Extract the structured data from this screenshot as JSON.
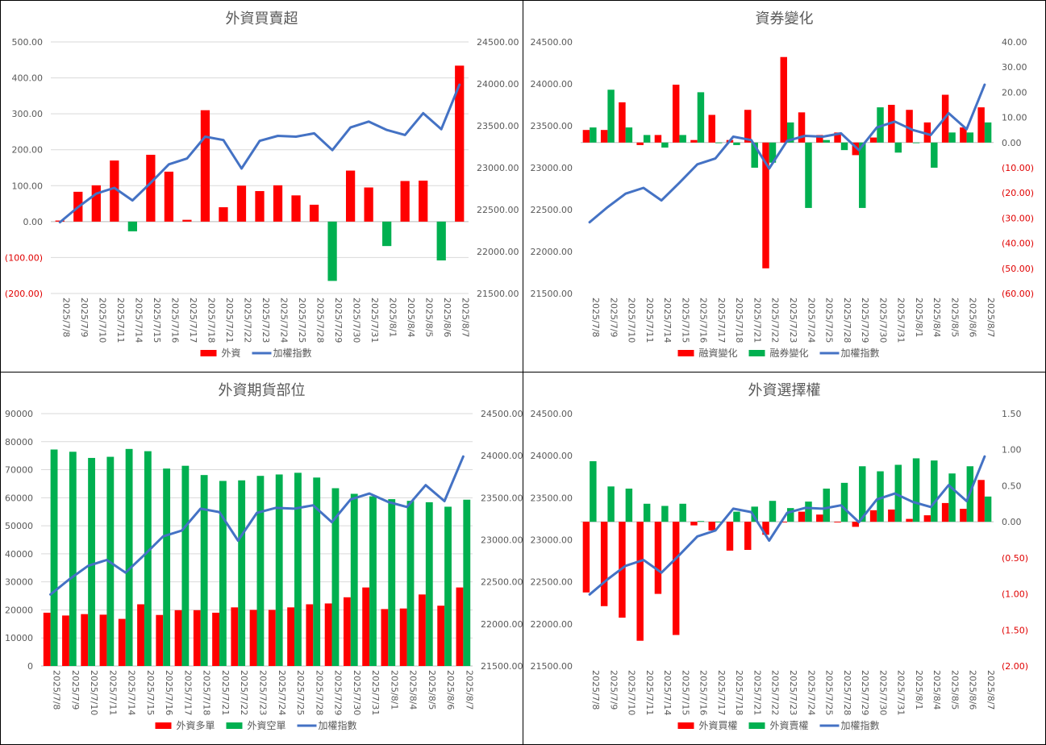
{
  "chart_data": [
    {
      "type": "bar",
      "title": "外資買賣超",
      "categories": [
        "2025/7/8",
        "2025/7/9",
        "2025/7/10",
        "2025/7/11",
        "2025/7/14",
        "2025/7/15",
        "2025/7/16",
        "2025/7/17",
        "2025/7/18",
        "2025/7/21",
        "2025/7/22",
        "2025/7/23",
        "2025/7/24",
        "2025/7/25",
        "2025/7/28",
        "2025/7/29",
        "2025/7/30",
        "2025/7/31",
        "2025/8/1",
        "2025/8/4",
        "2025/8/5",
        "2025/8/6",
        "2025/8/7"
      ],
      "yticks_left": [
        "500.00",
        "400.00",
        "300.00",
        "200.00",
        "100.00",
        "0.00",
        "(100.00)",
        "(200.00)"
      ],
      "yticks_right": [
        "24500.00",
        "24000.00",
        "23500.00",
        "23000.00",
        "22500.00",
        "22000.00",
        "21500.00"
      ],
      "ylim_left": [
        -200,
        500
      ],
      "ylim_right": [
        21500,
        24500
      ],
      "grid": true,
      "legend_position": "bottom",
      "series": [
        {
          "name": "外資",
          "kind": "bar",
          "axis": "left",
          "colors": [
            "#ff0000",
            "#00b050"
          ],
          "values": [
            3,
            83,
            101,
            170,
            -27,
            186,
            139,
            5,
            310,
            40,
            100,
            85,
            101,
            73,
            47,
            -165,
            142,
            95,
            -68,
            113,
            114,
            -108,
            434
          ]
        },
        {
          "name": "加權指數",
          "kind": "line",
          "axis": "right",
          "colors": [
            "#4472c4"
          ],
          "values": [
            22350,
            22530,
            22690,
            22760,
            22610,
            22820,
            23040,
            23110,
            23370,
            23330,
            22990,
            23320,
            23380,
            23370,
            23410,
            23210,
            23480,
            23550,
            23450,
            23390,
            23650,
            23460,
            23990
          ]
        }
      ]
    },
    {
      "type": "bar",
      "title": "資券變化",
      "categories": [
        "2025/7/8",
        "2025/7/9",
        "2025/7/10",
        "2025/7/11",
        "2025/7/14",
        "2025/7/15",
        "2025/7/16",
        "2025/7/17",
        "2025/7/18",
        "2025/7/21",
        "2025/7/22",
        "2025/7/23",
        "2025/7/24",
        "2025/7/25",
        "2025/7/28",
        "2025/7/29",
        "2025/7/30",
        "2025/7/31",
        "2025/8/1",
        "2025/8/4",
        "2025/8/5",
        "2025/8/6",
        "2025/8/7"
      ],
      "yticks_left": [
        "24500.00",
        "24000.00",
        "23500.00",
        "23000.00",
        "22500.00",
        "22000.00",
        "21500.00"
      ],
      "yticks_right": [
        "40.00",
        "30.00",
        "20.00",
        "10.00",
        "0.00",
        "(10.00)",
        "(20.00)",
        "(30.00)",
        "(40.00)",
        "(50.00)",
        "(60.00)"
      ],
      "ylim_left": [
        21500,
        24500
      ],
      "ylim_right": [
        -60,
        40
      ],
      "grid": false,
      "legend_position": "bottom",
      "series": [
        {
          "name": "融資變化",
          "kind": "bar",
          "axis": "right",
          "colors": [
            "#ff0000"
          ],
          "values": [
            5,
            5,
            16,
            -1,
            3,
            23,
            1,
            11,
            1,
            13,
            -50,
            34,
            12,
            3,
            4,
            -5,
            2,
            15,
            13,
            8,
            19,
            6,
            14
          ]
        },
        {
          "name": "融券變化",
          "kind": "bar",
          "axis": "right",
          "colors": [
            "#00b050"
          ],
          "values": [
            6,
            21,
            6,
            3,
            -2,
            3,
            20,
            0,
            -1,
            -10,
            -8,
            8,
            -26,
            1,
            -3,
            -26,
            14,
            -4,
            0,
            -10,
            4,
            4,
            8
          ]
        },
        {
          "name": "加權指數",
          "kind": "line",
          "axis": "left",
          "colors": [
            "#4472c4"
          ],
          "values": [
            22350,
            22530,
            22690,
            22760,
            22610,
            22820,
            23040,
            23110,
            23370,
            23330,
            22990,
            23320,
            23380,
            23370,
            23410,
            23210,
            23480,
            23550,
            23450,
            23390,
            23650,
            23460,
            23990
          ]
        }
      ]
    },
    {
      "type": "bar",
      "title": "外資期貨部位",
      "categories": [
        "2025/7/8",
        "2025/7/9",
        "2025/7/10",
        "2025/7/11",
        "2025/7/14",
        "2025/7/15",
        "2025/7/16",
        "2025/7/17",
        "2025/7/18",
        "2025/7/21",
        "2025/7/22",
        "2025/7/23",
        "2025/7/24",
        "2025/7/25",
        "2025/7/28",
        "2025/7/29",
        "2025/7/30",
        "2025/7/31",
        "2025/8/1",
        "2025/8/4",
        "2025/8/5",
        "2025/8/6",
        "2025/8/7"
      ],
      "yticks_left": [
        "90000",
        "80000",
        "70000",
        "60000",
        "50000",
        "40000",
        "30000",
        "20000",
        "10000",
        "0"
      ],
      "yticks_right": [
        "24500.00",
        "24000.00",
        "23500.00",
        "23000.00",
        "22500.00",
        "22000.00",
        "21500.00"
      ],
      "ylim_left": [
        0,
        90000
      ],
      "ylim_right": [
        21500,
        24500
      ],
      "grid": true,
      "legend_position": "bottom",
      "series": [
        {
          "name": "外資多單",
          "kind": "bar",
          "axis": "left",
          "colors": [
            "#ff0000"
          ],
          "values": [
            19000,
            18000,
            18500,
            18300,
            16800,
            22000,
            18200,
            19900,
            19900,
            19000,
            20900,
            20000,
            20000,
            20900,
            22000,
            22300,
            24500,
            28000,
            20300,
            20500,
            25500,
            21500,
            28000
          ]
        },
        {
          "name": "外資空單",
          "kind": "bar",
          "axis": "left",
          "colors": [
            "#00b050"
          ],
          "values": [
            77200,
            76400,
            74200,
            74600,
            77400,
            76600,
            70400,
            71400,
            68100,
            66000,
            66200,
            67800,
            68300,
            68900,
            67200,
            63400,
            61400,
            60500,
            59500,
            58900,
            58400,
            56800,
            59300
          ]
        },
        {
          "name": "加權指數",
          "kind": "line",
          "axis": "right",
          "colors": [
            "#4472c4"
          ],
          "values": [
            22350,
            22530,
            22690,
            22760,
            22610,
            22820,
            23040,
            23110,
            23370,
            23330,
            22990,
            23320,
            23380,
            23370,
            23410,
            23210,
            23480,
            23550,
            23450,
            23390,
            23650,
            23460,
            23990
          ]
        }
      ]
    },
    {
      "type": "bar",
      "title": "外資選擇權",
      "categories": [
        "2025/7/8",
        "2025/7/9",
        "2025/7/10",
        "2025/7/11",
        "2025/7/14",
        "2025/7/15",
        "2025/7/16",
        "2025/7/17",
        "2025/7/18",
        "2025/7/21",
        "2025/7/22",
        "2025/7/23",
        "2025/7/24",
        "2025/7/25",
        "2025/7/28",
        "2025/7/29",
        "2025/7/30",
        "2025/7/31",
        "2025/8/1",
        "2025/8/4",
        "2025/8/5",
        "2025/8/6",
        "2025/8/7"
      ],
      "yticks_left": [
        "24500.00",
        "24000.00",
        "23500.00",
        "23000.00",
        "22500.00",
        "22000.00",
        "21500.00"
      ],
      "yticks_right": [
        "1.50",
        "1.00",
        "0.50",
        "0.00",
        "(0.50)",
        "(1.00)",
        "(1.50)",
        "(2.00)"
      ],
      "ylim_left": [
        21500,
        24500
      ],
      "ylim_right": [
        -2,
        1.5
      ],
      "grid": false,
      "legend_position": "bottom",
      "series": [
        {
          "name": "外資買權",
          "kind": "bar",
          "axis": "right",
          "colors": [
            "#ff0000"
          ],
          "values": [
            -0.98,
            -1.17,
            -1.33,
            -1.65,
            -1.0,
            -1.57,
            -0.05,
            -0.12,
            -0.4,
            -0.39,
            -0.18,
            -0.01,
            0.14,
            0.1,
            -0.01,
            -0.07,
            0.16,
            0.17,
            0.04,
            0.09,
            0.26,
            0.18,
            0.58
          ]
        },
        {
          "name": "外資賣權",
          "kind": "bar",
          "axis": "right",
          "colors": [
            "#00b050"
          ],
          "values": [
            0.84,
            0.49,
            0.46,
            0.25,
            0.22,
            0.25,
            0.01,
            0.0,
            0.14,
            0.21,
            0.29,
            0.19,
            0.28,
            0.46,
            0.54,
            0.77,
            0.7,
            0.79,
            0.88,
            0.85,
            0.67,
            0.77,
            0.35
          ]
        },
        {
          "name": "加權指數",
          "kind": "line",
          "axis": "left",
          "colors": [
            "#4472c4"
          ],
          "values": [
            22350,
            22530,
            22690,
            22760,
            22610,
            22820,
            23040,
            23110,
            23370,
            23330,
            22990,
            23320,
            23380,
            23370,
            23410,
            23210,
            23480,
            23550,
            23450,
            23390,
            23650,
            23460,
            23990
          ]
        }
      ]
    }
  ]
}
